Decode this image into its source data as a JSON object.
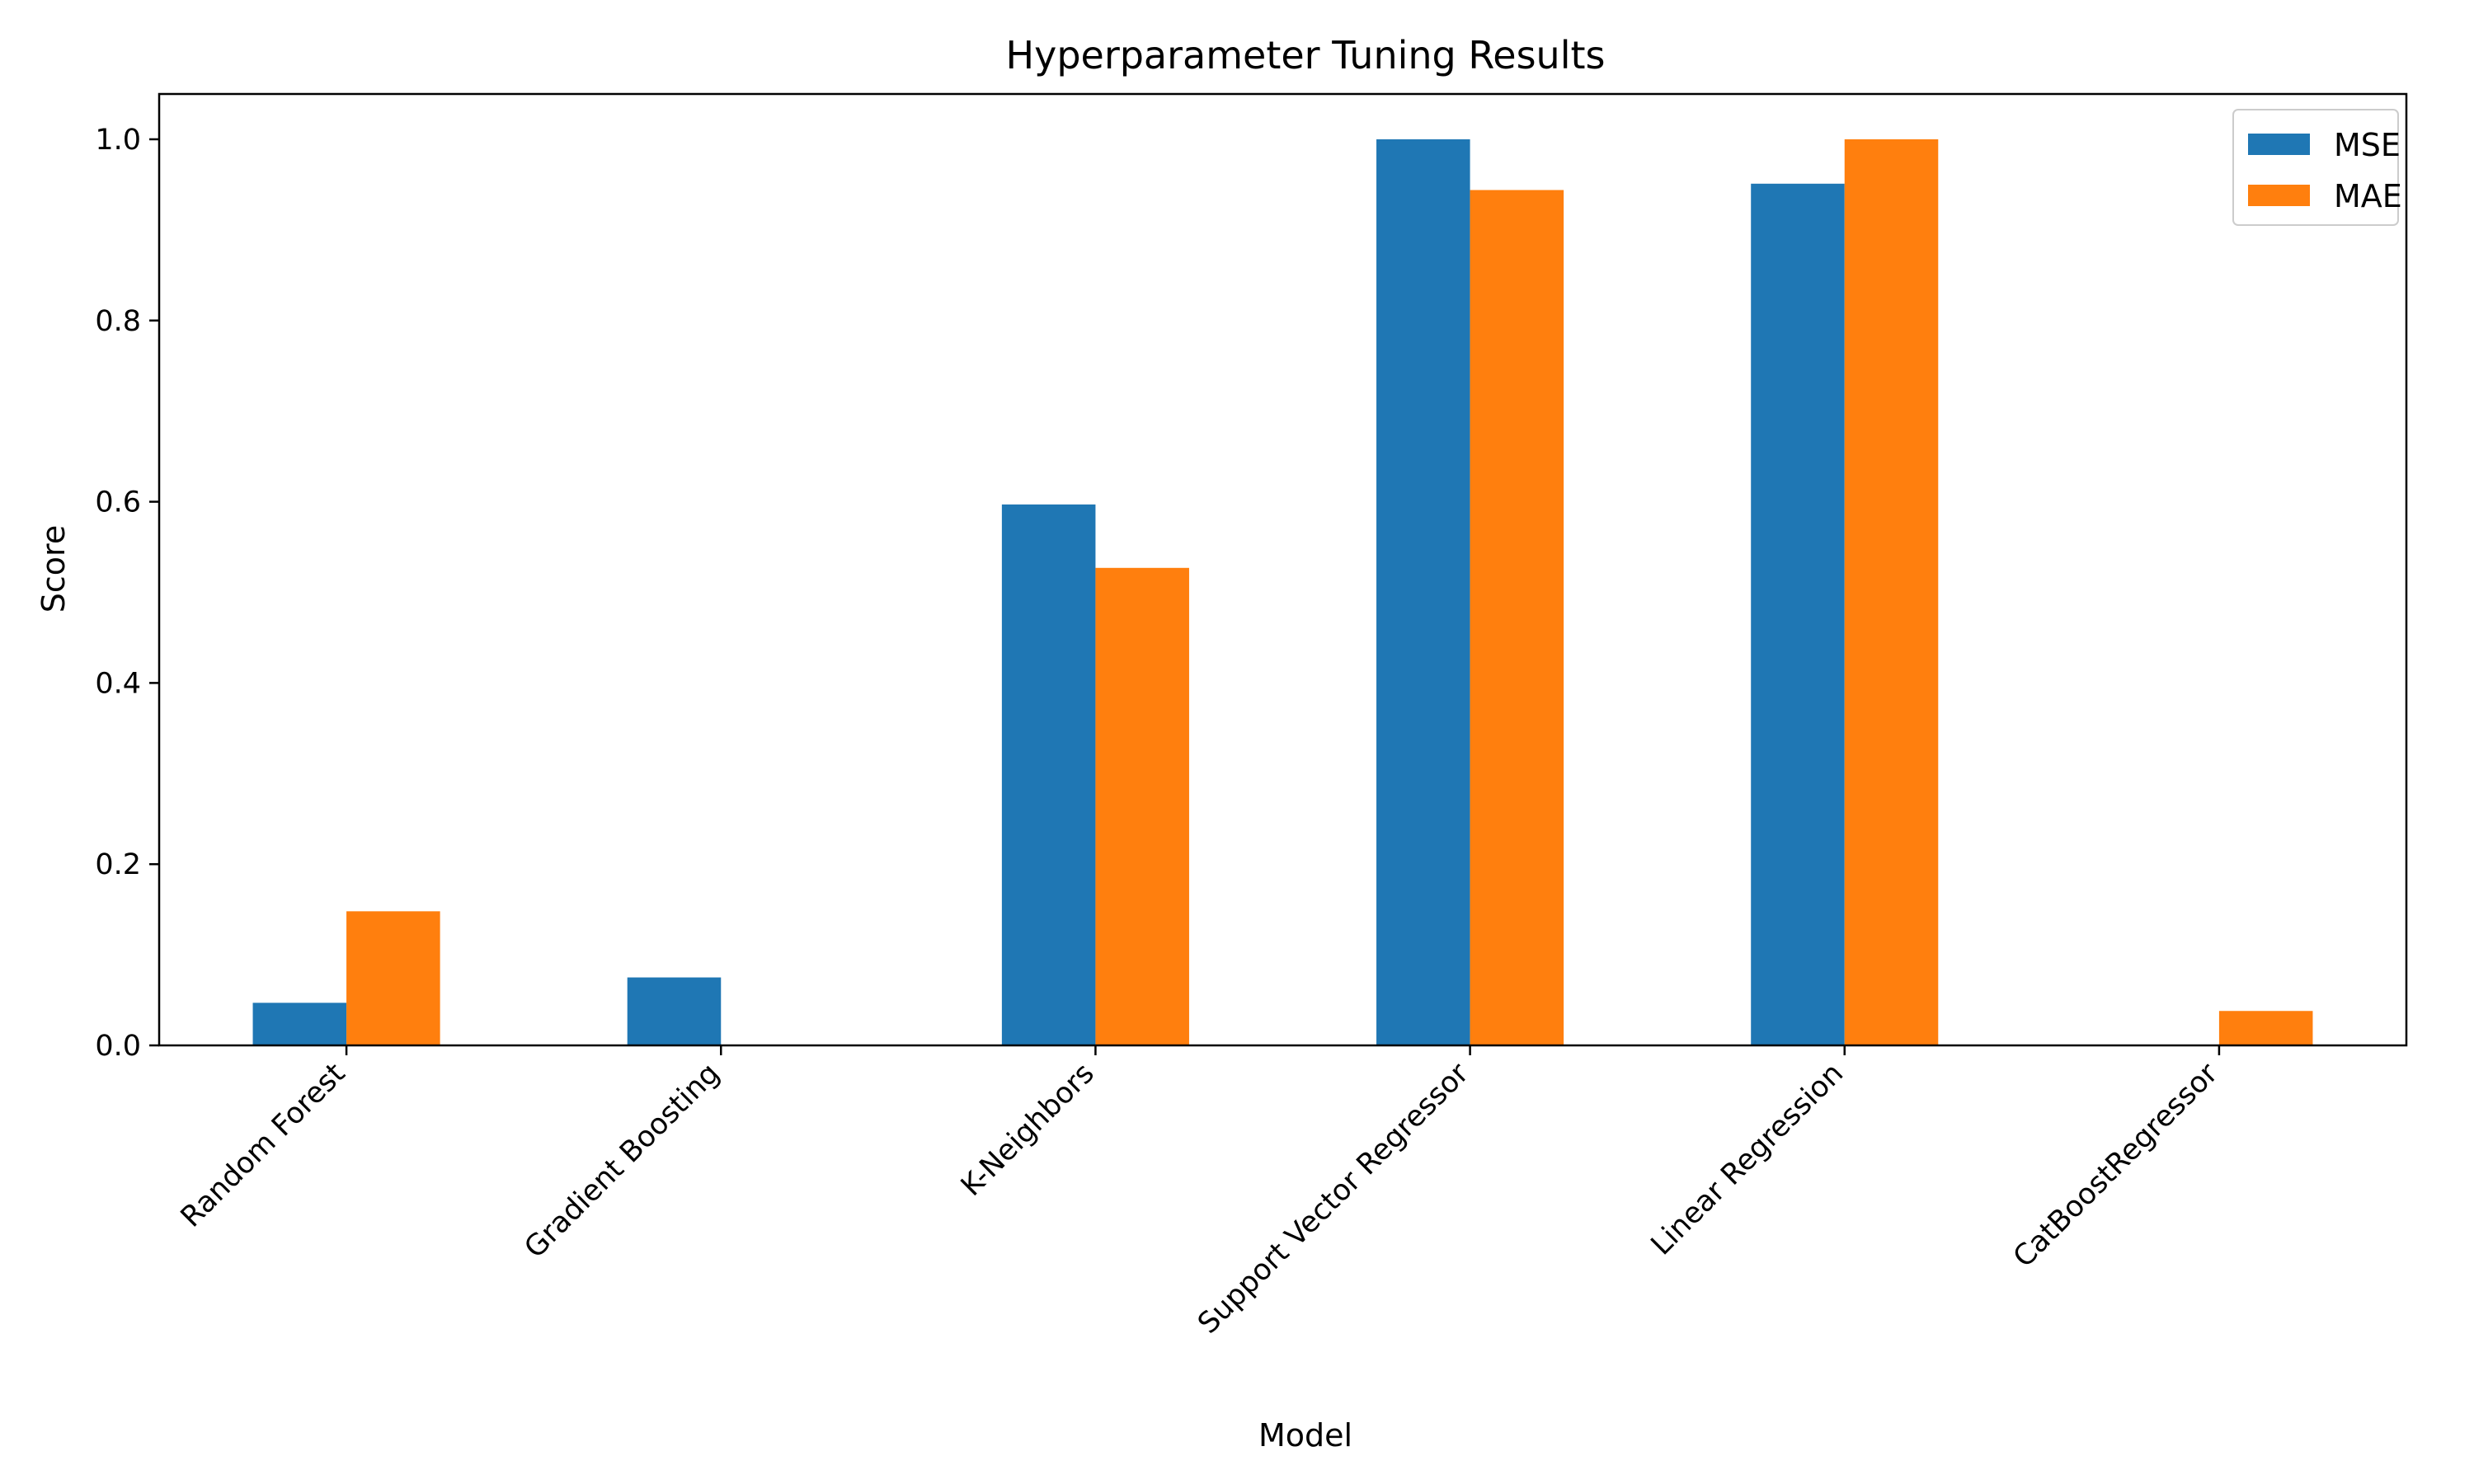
{
  "chart_data": {
    "type": "bar",
    "title": "Hyperparameter Tuning Results",
    "xlabel": "Model",
    "ylabel": "Score",
    "categories": [
      "Random Forest",
      "Gradient Boosting",
      "K-Neighbors",
      "Support Vector Regressor",
      "Linear Regression",
      "CatBoostRegressor"
    ],
    "series": [
      {
        "name": "MSE",
        "color": "#1f77b4",
        "values": [
          0.047,
          0.075,
          0.597,
          1.0,
          0.951,
          0.0
        ]
      },
      {
        "name": "MAE",
        "color": "#ff7f0e",
        "values": [
          0.148,
          0.0,
          0.527,
          0.944,
          1.0,
          0.038
        ]
      }
    ],
    "ylim": [
      0,
      1.05
    ],
    "yticks": [
      0.0,
      0.2,
      0.4,
      0.6,
      0.8,
      1.0
    ],
    "ytick_labels": [
      "0.0",
      "0.2",
      "0.4",
      "0.6",
      "0.8",
      "1.0"
    ],
    "grid": false,
    "legend_position": "top-right"
  }
}
